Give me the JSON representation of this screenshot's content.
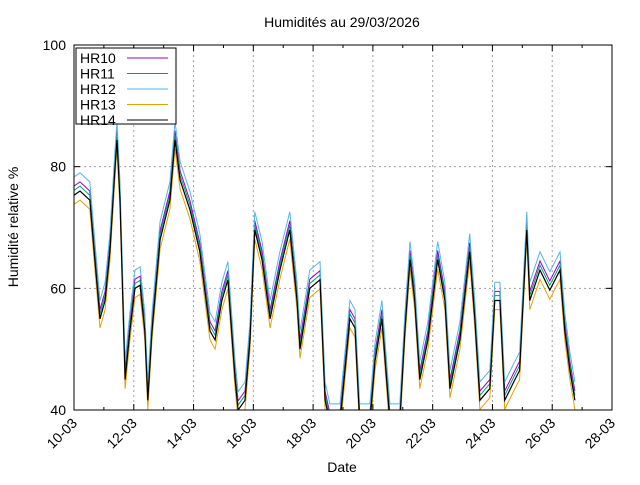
{
  "chart_data": {
    "type": "line",
    "title": "Humidités au 29/03/2026",
    "xlabel": "Date",
    "ylabel": "Humidité relative %",
    "xlim": [
      10,
      28
    ],
    "ylim": [
      40,
      100
    ],
    "xticks": [
      {
        "v": 10,
        "label": "10-03"
      },
      {
        "v": 12,
        "label": "12-03"
      },
      {
        "v": 14,
        "label": "14-03"
      },
      {
        "v": 16,
        "label": "16-03"
      },
      {
        "v": 18,
        "label": "18-03"
      },
      {
        "v": 20,
        "label": "20-03"
      },
      {
        "v": 22,
        "label": "22-03"
      },
      {
        "v": 24,
        "label": "24-03"
      },
      {
        "v": 26,
        "label": "26-03"
      },
      {
        "v": 28,
        "label": "28-03"
      }
    ],
    "yticks": [
      {
        "v": 40,
        "label": "40"
      },
      {
        "v": 60,
        "label": "60"
      },
      {
        "v": 80,
        "label": "80"
      },
      {
        "v": 100,
        "label": "100"
      }
    ],
    "grid": true,
    "legend_position": "top-left",
    "x": [
      10.0,
      10.2,
      10.53,
      10.7,
      10.87,
      11.04,
      11.2,
      11.37,
      11.44,
      11.54,
      11.71,
      11.87,
      12.04,
      12.21,
      12.37,
      12.47,
      12.61,
      12.88,
      13.21,
      13.38,
      13.55,
      13.88,
      14.21,
      14.55,
      14.72,
      14.95,
      15.15,
      15.39,
      15.49,
      15.72,
      15.89,
      16.05,
      16.29,
      16.56,
      16.89,
      17.22,
      17.46,
      17.56,
      17.89,
      18.23,
      18.4,
      18.56,
      18.9,
      19.23,
      19.4,
      19.56,
      19.9,
      20.07,
      20.3,
      20.57,
      20.9,
      21.07,
      21.24,
      21.4,
      21.57,
      21.84,
      22.17,
      22.41,
      22.58,
      22.91,
      23.24,
      23.41,
      23.58,
      23.91,
      24.08,
      24.25,
      24.41,
      24.75,
      24.91,
      25.15,
      25.25,
      25.59,
      25.92,
      26.26,
      26.42,
      26.59,
      26.76
    ],
    "series": [
      {
        "name": "HR10",
        "color": "#9400d3",
        "values": [
          76.8,
          77.5,
          76.0,
          66.1,
          56.5,
          59.5,
          67.5,
          81.0,
          85.9,
          76.0,
          46.5,
          54.5,
          61.5,
          62.0,
          54.5,
          43.1,
          54.5,
          69.5,
          76.0,
          85.9,
          79.3,
          74.4,
          67.5,
          54.5,
          53.0,
          59.5,
          62.9,
          46.5,
          41.5,
          43.1,
          53.0,
          71.1,
          66.2,
          56.5,
          64.5,
          71.1,
          59.5,
          51.5,
          61.5,
          62.9,
          43.1,
          39.5,
          39.5,
          56.5,
          55.0,
          39.5,
          39.5,
          49.5,
          56.5,
          39.5,
          39.5,
          54.5,
          66.2,
          59.5,
          46.5,
          53.0,
          66.2,
          59.5,
          45.0,
          53.0,
          67.5,
          56.5,
          43.1,
          45.0,
          59.5,
          59.5,
          43.1,
          46.5,
          48.0,
          71.1,
          59.5,
          64.5,
          61.2,
          64.5,
          54.5,
          48.0,
          43.1
        ]
      },
      {
        "name": "HR11",
        "color": "#009e73",
        "values": [
          76.1,
          76.8,
          75.3,
          65.4,
          55.8,
          58.8,
          66.8,
          80.3,
          85.2,
          75.3,
          45.8,
          53.8,
          60.8,
          61.3,
          53.8,
          42.4,
          53.8,
          68.8,
          75.3,
          85.2,
          78.6,
          73.7,
          66.8,
          53.8,
          52.3,
          58.8,
          62.2,
          45.8,
          40.8,
          42.4,
          52.3,
          70.4,
          65.5,
          55.8,
          63.8,
          70.4,
          58.8,
          50.8,
          60.8,
          62.2,
          42.4,
          38.8,
          38.8,
          55.8,
          54.3,
          38.8,
          38.8,
          48.8,
          55.8,
          38.8,
          38.8,
          53.8,
          65.5,
          58.8,
          45.8,
          52.3,
          65.5,
          58.8,
          44.3,
          52.3,
          66.8,
          55.8,
          42.4,
          44.3,
          58.8,
          58.8,
          42.4,
          45.8,
          47.3,
          70.4,
          58.8,
          63.8,
          60.5,
          63.8,
          53.8,
          47.3,
          42.4
        ]
      },
      {
        "name": "HR12",
        "color": "#56b4e9",
        "values": [
          78.3,
          79.0,
          77.5,
          67.6,
          58.0,
          61.0,
          69.0,
          82.5,
          87.4,
          77.5,
          48.0,
          56.0,
          63.0,
          63.5,
          56.0,
          44.6,
          56.0,
          71.0,
          77.5,
          87.4,
          80.8,
          75.9,
          69.0,
          56.0,
          54.5,
          61.0,
          64.4,
          48.0,
          43.0,
          44.6,
          54.5,
          72.6,
          67.7,
          58.0,
          66.0,
          72.6,
          61.0,
          53.0,
          63.0,
          64.4,
          44.6,
          41.0,
          41.0,
          58.0,
          56.5,
          41.0,
          41.0,
          51.0,
          58.0,
          41.0,
          41.0,
          56.0,
          67.7,
          61.0,
          48.0,
          54.5,
          67.7,
          61.0,
          46.5,
          54.5,
          69.0,
          58.0,
          44.6,
          46.5,
          61.0,
          61.0,
          44.6,
          48.0,
          49.5,
          72.6,
          61.0,
          66.0,
          62.7,
          66.0,
          56.0,
          49.5,
          44.6
        ]
      },
      {
        "name": "HR13",
        "color": "#e69f00",
        "values": [
          73.8,
          74.5,
          73.0,
          63.1,
          53.5,
          56.5,
          64.5,
          78.0,
          82.9,
          73.0,
          43.5,
          51.5,
          58.5,
          59.0,
          51.5,
          40.1,
          51.5,
          66.5,
          73.0,
          82.9,
          76.3,
          71.4,
          64.5,
          51.5,
          50.0,
          56.5,
          59.9,
          43.5,
          38.5,
          40.1,
          50.0,
          68.1,
          63.2,
          53.5,
          61.5,
          68.1,
          56.5,
          48.5,
          58.5,
          59.9,
          40.1,
          36.5,
          36.5,
          53.5,
          52.0,
          36.5,
          36.5,
          46.5,
          53.5,
          36.5,
          36.5,
          51.5,
          63.2,
          56.5,
          43.5,
          50.0,
          63.2,
          56.5,
          42.0,
          50.0,
          64.5,
          53.5,
          40.1,
          42.0,
          56.5,
          56.5,
          40.1,
          43.5,
          45.0,
          68.1,
          56.5,
          61.5,
          58.2,
          61.5,
          51.5,
          45.0,
          40.1
        ]
      },
      {
        "name": "HR14",
        "color": "#000000",
        "values": [
          75.3,
          76.0,
          74.5,
          64.6,
          55.0,
          58.0,
          66.0,
          79.5,
          84.4,
          74.5,
          45.0,
          53.0,
          60.0,
          60.5,
          53.0,
          41.6,
          53.0,
          68.0,
          74.5,
          84.4,
          77.8,
          72.9,
          66.0,
          53.0,
          51.5,
          58.0,
          61.4,
          45.0,
          40.0,
          41.6,
          51.5,
          69.6,
          64.7,
          55.0,
          63.0,
          69.6,
          58.0,
          50.0,
          60.0,
          61.4,
          41.6,
          38.0,
          38.0,
          55.0,
          53.5,
          38.0,
          38.0,
          48.0,
          55.0,
          38.0,
          38.0,
          53.0,
          64.7,
          58.0,
          45.0,
          51.5,
          64.7,
          58.0,
          43.5,
          51.5,
          66.0,
          55.0,
          41.6,
          43.5,
          58.0,
          58.0,
          41.6,
          45.0,
          46.5,
          69.6,
          58.0,
          63.0,
          59.7,
          63.0,
          53.0,
          46.5,
          41.6
        ]
      }
    ]
  }
}
